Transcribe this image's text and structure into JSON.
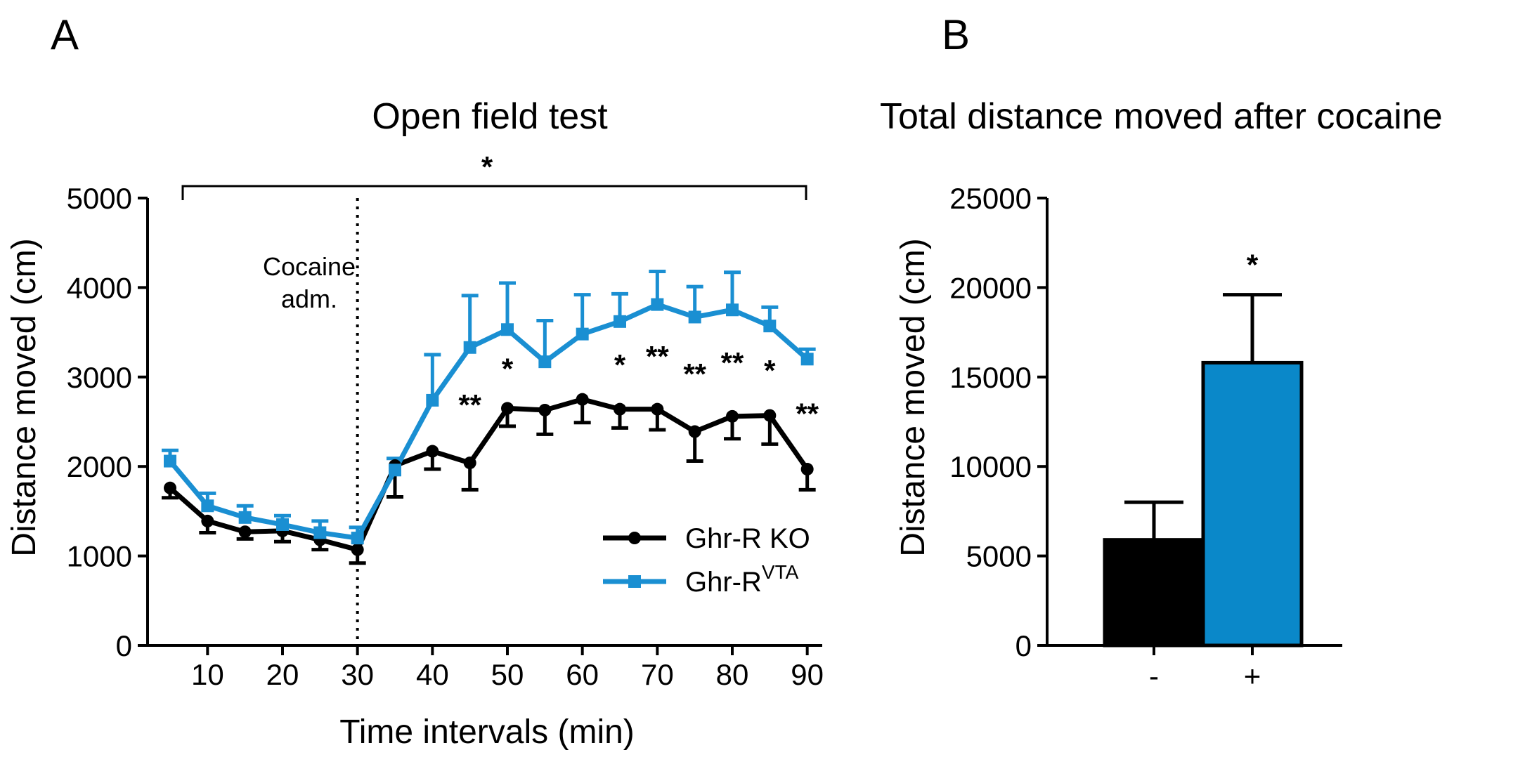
{
  "panels": {
    "a": "A",
    "b": "B"
  },
  "colors": {
    "ko": "#000000",
    "vta": "#1a8fd2",
    "bar_plus": "#0a88c9",
    "bar_minus": "#000000"
  },
  "chart_data": [
    {
      "type": "line",
      "title": "Open field test",
      "xlabel": "Time intervals (min)",
      "ylabel": "Distance moved (cm)",
      "xlim": [
        2,
        92
      ],
      "ylim": [
        0,
        5000
      ],
      "xticks": [
        10,
        20,
        30,
        40,
        50,
        60,
        70,
        80,
        90
      ],
      "yticks": [
        0,
        1000,
        2000,
        3000,
        4000,
        5000
      ],
      "xtick_labels": [
        "10",
        "20",
        "30",
        "40",
        "50",
        "60",
        "70",
        "80",
        "90"
      ],
      "ytick_labels": [
        "0",
        "1000",
        "2000",
        "3000",
        "4000",
        "5000"
      ],
      "x": [
        5,
        10,
        15,
        20,
        25,
        30,
        35,
        40,
        45,
        50,
        55,
        60,
        65,
        70,
        75,
        80,
        85,
        90
      ],
      "series": [
        {
          "name": "Ghr-R KO",
          "marker": "circle",
          "values": [
            1760,
            1390,
            1270,
            1280,
            1180,
            1070,
            2010,
            2170,
            2040,
            2650,
            2630,
            2750,
            2640,
            2640,
            2390,
            2560,
            2570,
            1970
          ],
          "errors": [
            110,
            130,
            80,
            120,
            110,
            150,
            350,
            200,
            300,
            200,
            270,
            260,
            210,
            230,
            330,
            250,
            320,
            230
          ],
          "error_dir": "down"
        },
        {
          "name": "Ghr-R",
          "name_sup": "VTA",
          "marker": "square",
          "values": [
            2060,
            1560,
            1430,
            1350,
            1260,
            1200,
            1960,
            2740,
            3330,
            3530,
            3170,
            3480,
            3620,
            3810,
            3670,
            3750,
            3570,
            3200
          ],
          "errors": [
            120,
            140,
            130,
            100,
            130,
            120,
            130,
            510,
            580,
            520,
            460,
            440,
            310,
            370,
            340,
            420,
            210,
            110
          ],
          "error_dir": "up"
        }
      ],
      "annotations": {
        "bracket_star": "*",
        "cocaine_line1": "Cocaine",
        "cocaine_line2": "adm.",
        "cocaine_x": 30,
        "stars": [
          {
            "x": 45,
            "text": "**"
          },
          {
            "x": 50,
            "text": "*"
          },
          {
            "x": 65,
            "text": "*"
          },
          {
            "x": 70,
            "text": "**"
          },
          {
            "x": 75,
            "text": "**"
          },
          {
            "x": 80,
            "text": "**"
          },
          {
            "x": 85,
            "text": "*"
          },
          {
            "x": 90,
            "text": "**"
          }
        ]
      },
      "legend_position": "bottom-right"
    },
    {
      "type": "bar",
      "title": "Total distance moved after cocaine",
      "ylabel": "Distance moved (cm)",
      "ylim": [
        0,
        25000
      ],
      "yticks": [
        0,
        5000,
        10000,
        15000,
        20000,
        25000
      ],
      "ytick_labels": [
        "0",
        "5000",
        "10000",
        "15000",
        "20000",
        "25000"
      ],
      "categories": [
        "-",
        "+"
      ],
      "values": [
        5900,
        15800
      ],
      "errors": [
        2100,
        3800
      ],
      "significance": "*"
    }
  ]
}
